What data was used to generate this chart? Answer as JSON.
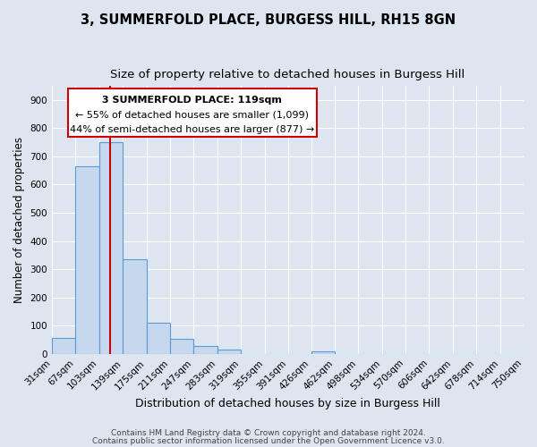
{
  "title1": "3, SUMMERFOLD PLACE, BURGESS HILL, RH15 8GN",
  "title2": "Size of property relative to detached houses in Burgess Hill",
  "xlabel": "Distribution of detached houses by size in Burgess Hill",
  "ylabel": "Number of detached properties",
  "bin_edges": [
    31,
    67,
    103,
    139,
    175,
    211,
    247,
    283,
    319,
    355,
    391,
    426,
    462,
    498,
    534,
    570,
    606,
    642,
    678,
    714,
    750
  ],
  "bar_heights": [
    55,
    665,
    750,
    335,
    110,
    52,
    28,
    15,
    0,
    0,
    0,
    10,
    0,
    0,
    0,
    0,
    0,
    0,
    0,
    0
  ],
  "bar_color": "#c5d8ed",
  "bar_edgecolor": "#5b9bd5",
  "bar_linewidth": 0.8,
  "red_line_x": 119,
  "red_line_color": "#cc0000",
  "annotation_line1": "3 SUMMERFOLD PLACE: 119sqm",
  "annotation_line2": "← 55% of detached houses are smaller (1,099)",
  "annotation_line3": "44% of semi-detached houses are larger (877) →",
  "ylim": [
    0,
    950
  ],
  "yticks": [
    0,
    100,
    200,
    300,
    400,
    500,
    600,
    700,
    800,
    900
  ],
  "bg_color": "#dde6f0",
  "plot_bg_color": "#dde6f0",
  "grid_color": "#ffffff",
  "footer1": "Contains HM Land Registry data © Crown copyright and database right 2024.",
  "footer2": "Contains public sector information licensed under the Open Government Licence v3.0.",
  "title1_fontsize": 10.5,
  "title2_fontsize": 9.5,
  "xlabel_fontsize": 9,
  "ylabel_fontsize": 8.5,
  "tick_fontsize": 7.5,
  "annotation_fontsize": 8,
  "footer_fontsize": 6.5
}
